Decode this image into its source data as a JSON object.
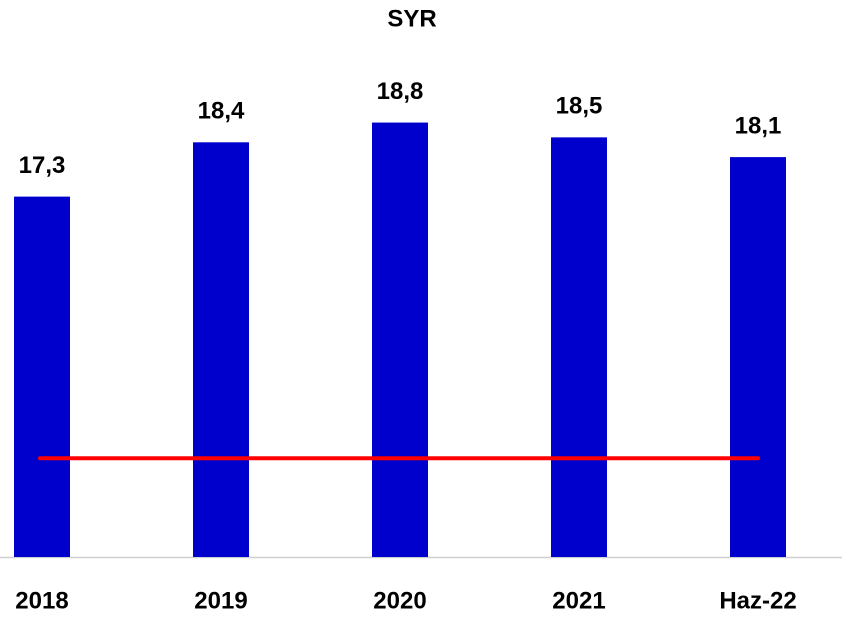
{
  "chart_data": {
    "type": "bar",
    "title": "SYR",
    "categories": [
      "2018",
      "2019",
      "2020",
      "2021",
      "Haz-22"
    ],
    "values": [
      17.3,
      18.4,
      18.8,
      18.5,
      18.1
    ],
    "value_labels": [
      "17,3",
      "18,4",
      "18,8",
      "18,5",
      "18,1"
    ],
    "color": "#0000cc",
    "ylim": [
      10,
      19.5
    ],
    "reference_line": {
      "value": 12,
      "color": "#ff0000"
    }
  }
}
